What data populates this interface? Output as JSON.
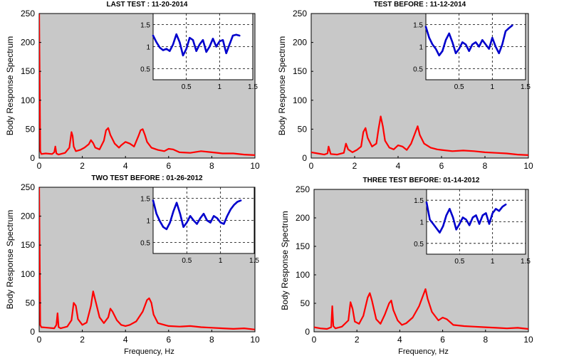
{
  "chart_data": [
    {
      "type": "line",
      "title": "LAST TEST : 11-20-2014",
      "ylabel": "Body Response Spectrum",
      "xlabel": "",
      "xlim": [
        0,
        10
      ],
      "ylim": [
        0,
        250
      ],
      "xticks": [
        "0",
        "2",
        "4",
        "6",
        "8",
        "10"
      ],
      "yticks": [
        "0",
        "50",
        "100",
        "150",
        "200",
        "250"
      ],
      "series": [
        {
          "color": "#ff0000",
          "x": [
            0,
            0.05,
            0.1,
            0.3,
            0.6,
            0.7,
            0.75,
            0.8,
            0.9,
            1.2,
            1.4,
            1.5,
            1.55,
            1.6,
            1.7,
            1.9,
            2.1,
            2.3,
            2.4,
            2.5,
            2.6,
            2.8,
            3.0,
            3.1,
            3.2,
            3.3,
            3.5,
            3.7,
            3.8,
            4.0,
            4.2,
            4.4,
            4.6,
            4.7,
            4.8,
            4.9,
            5.0,
            5.2,
            5.5,
            5.8,
            6.0,
            6.2,
            6.5,
            7.0,
            7.5,
            8.0,
            8.5,
            9.0,
            9.5,
            10.0
          ],
          "y": [
            250,
            12,
            7,
            8,
            7,
            10,
            20,
            8,
            6,
            9,
            18,
            45,
            38,
            20,
            12,
            14,
            18,
            24,
            31,
            26,
            18,
            15,
            30,
            48,
            52,
            40,
            25,
            18,
            22,
            28,
            25,
            20,
            38,
            48,
            50,
            40,
            28,
            18,
            14,
            12,
            16,
            15,
            10,
            9,
            12,
            10,
            8,
            8,
            6,
            5
          ]
        }
      ],
      "inset": {
        "xlim": [
          0,
          1.5
        ],
        "ylim": [
          0.25,
          1.75
        ],
        "xticks": [
          "0.5",
          "1",
          "1.5"
        ],
        "yticks": [
          "0.5",
          "1",
          "1.5"
        ],
        "color": "#0000cc",
        "x": [
          0,
          0.05,
          0.1,
          0.15,
          0.2,
          0.25,
          0.3,
          0.35,
          0.4,
          0.45,
          0.5,
          0.55,
          0.6,
          0.65,
          0.7,
          0.75,
          0.8,
          0.85,
          0.9,
          0.95,
          1.0,
          1.05,
          1.1,
          1.15,
          1.2,
          1.25,
          1.3
        ],
        "y": [
          1.25,
          1.1,
          0.98,
          0.92,
          0.95,
          0.9,
          1.05,
          1.28,
          1.1,
          0.8,
          0.95,
          1.2,
          1.15,
          0.9,
          1.05,
          1.15,
          0.88,
          1.0,
          1.18,
          1.0,
          1.12,
          1.15,
          0.85,
          1.05,
          1.25,
          1.27,
          1.25
        ]
      }
    },
    {
      "type": "line",
      "title": "TEST BEFORE : 11-12-2014",
      "ylabel": "Body Response Spectrum",
      "xlabel": "",
      "xlim": [
        0,
        10
      ],
      "ylim": [
        0,
        250
      ],
      "xticks": [
        "0",
        "2",
        "4",
        "6",
        "8",
        "10"
      ],
      "yticks": [
        "0",
        "50",
        "100",
        "150",
        "200",
        "250"
      ],
      "series": [
        {
          "color": "#ff0000",
          "x": [
            0,
            0.3,
            0.6,
            0.75,
            0.8,
            0.9,
            1.2,
            1.5,
            1.6,
            1.7,
            1.9,
            2.1,
            2.3,
            2.4,
            2.5,
            2.6,
            2.8,
            3.0,
            3.1,
            3.2,
            3.3,
            3.4,
            3.6,
            3.8,
            4.0,
            4.2,
            4.4,
            4.6,
            4.8,
            4.9,
            5.0,
            5.2,
            5.5,
            5.8,
            6.0,
            6.5,
            7.0,
            7.5,
            8.0,
            8.5,
            9.0,
            9.5,
            10.0
          ],
          "y": [
            10,
            8,
            6,
            8,
            20,
            7,
            6,
            9,
            25,
            15,
            10,
            14,
            20,
            45,
            52,
            35,
            20,
            25,
            50,
            72,
            55,
            30,
            18,
            15,
            22,
            20,
            14,
            25,
            45,
            55,
            40,
            25,
            18,
            15,
            14,
            12,
            13,
            12,
            10,
            9,
            8,
            6,
            5
          ]
        }
      ],
      "inset": {
        "xlim": [
          0,
          1.5
        ],
        "ylim": [
          0.25,
          1.75
        ],
        "xticks": [
          "0.5",
          "1",
          "1.5"
        ],
        "yticks": [
          "0.5",
          "1",
          "1.5"
        ],
        "color": "#0000cc",
        "x": [
          0,
          0.05,
          0.1,
          0.15,
          0.2,
          0.25,
          0.3,
          0.35,
          0.4,
          0.45,
          0.5,
          0.55,
          0.6,
          0.65,
          0.7,
          0.75,
          0.8,
          0.85,
          0.9,
          0.95,
          1.0,
          1.05,
          1.1,
          1.15,
          1.2,
          1.25,
          1.3
        ],
        "y": [
          1.45,
          1.2,
          1.05,
          0.95,
          0.8,
          0.9,
          1.15,
          1.3,
          1.1,
          0.85,
          0.95,
          1.1,
          1.05,
          0.9,
          1.05,
          1.1,
          1.0,
          1.15,
          1.05,
          0.95,
          1.2,
          1.0,
          0.85,
          1.05,
          1.35,
          1.42,
          1.48
        ]
      }
    },
    {
      "type": "line",
      "title": "TWO TEST BEFORE : 01-26-2012",
      "ylabel": "Body Response Spectrum",
      "xlabel": "Frequency, Hz",
      "xlim": [
        0,
        10
      ],
      "ylim": [
        0,
        250
      ],
      "xticks": [
        "0",
        "2",
        "4",
        "6",
        "8",
        "10"
      ],
      "yticks": [
        "0",
        "50",
        "100",
        "150",
        "200",
        "250"
      ],
      "series": [
        {
          "color": "#ff0000",
          "x": [
            0,
            0.05,
            0.1,
            0.4,
            0.7,
            0.8,
            0.85,
            0.9,
            1.0,
            1.3,
            1.5,
            1.6,
            1.7,
            1.8,
            2.0,
            2.2,
            2.4,
            2.5,
            2.6,
            2.8,
            3.0,
            3.2,
            3.3,
            3.4,
            3.6,
            3.8,
            4.0,
            4.2,
            4.5,
            4.8,
            5.0,
            5.1,
            5.2,
            5.3,
            5.5,
            5.8,
            6.0,
            6.5,
            7.0,
            7.5,
            8.0,
            8.5,
            9.0,
            9.5,
            10.0
          ],
          "y": [
            250,
            12,
            8,
            7,
            6,
            12,
            32,
            8,
            6,
            9,
            20,
            50,
            45,
            22,
            12,
            16,
            45,
            70,
            55,
            25,
            15,
            25,
            40,
            35,
            20,
            12,
            10,
            12,
            18,
            35,
            55,
            58,
            50,
            30,
            15,
            12,
            10,
            9,
            10,
            8,
            7,
            6,
            5,
            6,
            4
          ]
        }
      ],
      "inset": {
        "xlim": [
          0,
          1.5
        ],
        "ylim": [
          0.25,
          1.75
        ],
        "xticks": [
          "0.5",
          "1",
          "1.5"
        ],
        "yticks": [
          "0.5",
          "1",
          "1.5"
        ],
        "color": "#0000cc",
        "x": [
          0,
          0.05,
          0.1,
          0.15,
          0.2,
          0.25,
          0.3,
          0.35,
          0.4,
          0.45,
          0.5,
          0.55,
          0.6,
          0.65,
          0.7,
          0.75,
          0.8,
          0.85,
          0.9,
          0.95,
          1.0,
          1.05,
          1.1,
          1.15,
          1.2,
          1.25,
          1.3
        ],
        "y": [
          1.45,
          1.15,
          0.98,
          0.85,
          0.8,
          0.95,
          1.2,
          1.4,
          1.15,
          0.85,
          0.95,
          1.1,
          1.0,
          0.92,
          1.05,
          1.15,
          1.0,
          0.95,
          1.1,
          1.05,
          0.95,
          0.92,
          1.1,
          1.25,
          1.35,
          1.42,
          1.45
        ]
      }
    },
    {
      "type": "line",
      "title": "THREE TEST BEFORE:   01-14-2012",
      "ylabel": "Body Response Spectrum",
      "xlabel": "Frequency, Hz",
      "xlim": [
        0,
        10
      ],
      "ylim": [
        0,
        250
      ],
      "xticks": [
        "0",
        "2",
        "4",
        "6",
        "8",
        "10"
      ],
      "yticks": [
        "0",
        "50",
        "100",
        "150",
        "200",
        "250"
      ],
      "series": [
        {
          "color": "#ff0000",
          "x": [
            0,
            0.3,
            0.6,
            0.8,
            0.85,
            0.9,
            1.0,
            1.3,
            1.6,
            1.7,
            1.8,
            1.9,
            2.1,
            2.3,
            2.5,
            2.6,
            2.7,
            2.9,
            3.1,
            3.3,
            3.5,
            3.6,
            3.7,
            3.9,
            4.1,
            4.3,
            4.6,
            4.9,
            5.1,
            5.2,
            5.3,
            5.5,
            5.8,
            6.0,
            6.2,
            6.5,
            7.0,
            7.5,
            8.0,
            8.5,
            9.0,
            9.5,
            10.0
          ],
          "y": [
            8,
            6,
            5,
            8,
            45,
            10,
            6,
            9,
            20,
            52,
            40,
            18,
            14,
            28,
            60,
            68,
            55,
            22,
            14,
            30,
            50,
            55,
            38,
            20,
            12,
            15,
            25,
            45,
            65,
            75,
            58,
            35,
            20,
            25,
            22,
            12,
            10,
            9,
            8,
            7,
            6,
            7,
            5
          ]
        }
      ],
      "inset": {
        "xlim": [
          0,
          1.5
        ],
        "ylim": [
          0.25,
          1.75
        ],
        "xticks": [
          "0.5",
          "1",
          "1.5"
        ],
        "yticks": [
          "0.5",
          "1",
          "1.5"
        ],
        "color": "#0000cc",
        "x": [
          0,
          0.05,
          0.1,
          0.15,
          0.2,
          0.25,
          0.3,
          0.35,
          0.4,
          0.45,
          0.5,
          0.55,
          0.6,
          0.65,
          0.7,
          0.75,
          0.8,
          0.85,
          0.9,
          0.95,
          1.0,
          1.05,
          1.1,
          1.15,
          1.2
        ],
        "y": [
          1.45,
          1.05,
          0.95,
          0.85,
          0.75,
          0.9,
          1.15,
          1.3,
          1.1,
          0.82,
          0.95,
          1.1,
          1.05,
          0.92,
          1.1,
          1.15,
          0.95,
          1.15,
          1.2,
          0.95,
          1.2,
          1.3,
          1.25,
          1.35,
          1.4
        ]
      }
    }
  ]
}
